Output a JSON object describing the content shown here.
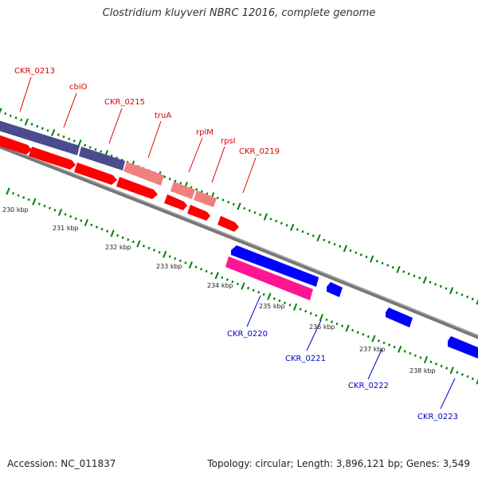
{
  "title": "Clostridium kluyveri NBRC 12016, complete genome",
  "accession": "Accession: NC_011837",
  "topology": "Topology: circular; Length: 3,896,121 bp; Genes: 3,549",
  "colors": {
    "red_gene": "#ff0000",
    "pink_gene": "#f08080",
    "purple_gene": "#4b4b8f",
    "blue_gene": "#0000ff",
    "magenta_gene": "#ff1493",
    "tick_green": "#008000",
    "backbone": "#808080",
    "label_red": "#dd0000",
    "label_blue": "#0000cc"
  },
  "kbp_labels": [
    "230 kbp",
    "231 kbp",
    "232 kbp",
    "233 kbp",
    "234 kbp",
    "235 kbp",
    "236 kbp",
    "237 kbp",
    "238 kbp"
  ],
  "gene_labels_top": [
    "CKR_0213",
    "cbiO",
    "CKR_0215",
    "truA",
    "rplM",
    "rpsI",
    "CKR_0219"
  ],
  "gene_labels_bottom": [
    "CKR_0220",
    "CKR_0221",
    "CKR_0222",
    "CKR_0223"
  ]
}
